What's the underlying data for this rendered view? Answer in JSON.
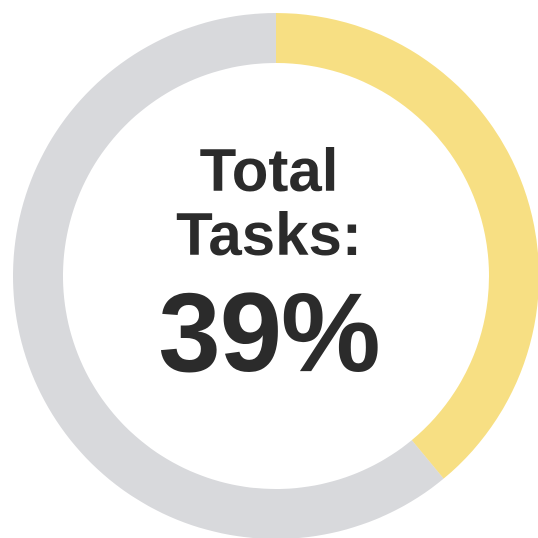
{
  "chart_data": {
    "type": "pie",
    "title": "",
    "center_label_lines": [
      "Total",
      "Tasks:"
    ],
    "center_value": "39%",
    "slices": [
      {
        "label": "",
        "value": 39,
        "color": "#F7DF83"
      },
      {
        "label": "",
        "value": 61,
        "color": "#D8D9DC"
      }
    ]
  }
}
